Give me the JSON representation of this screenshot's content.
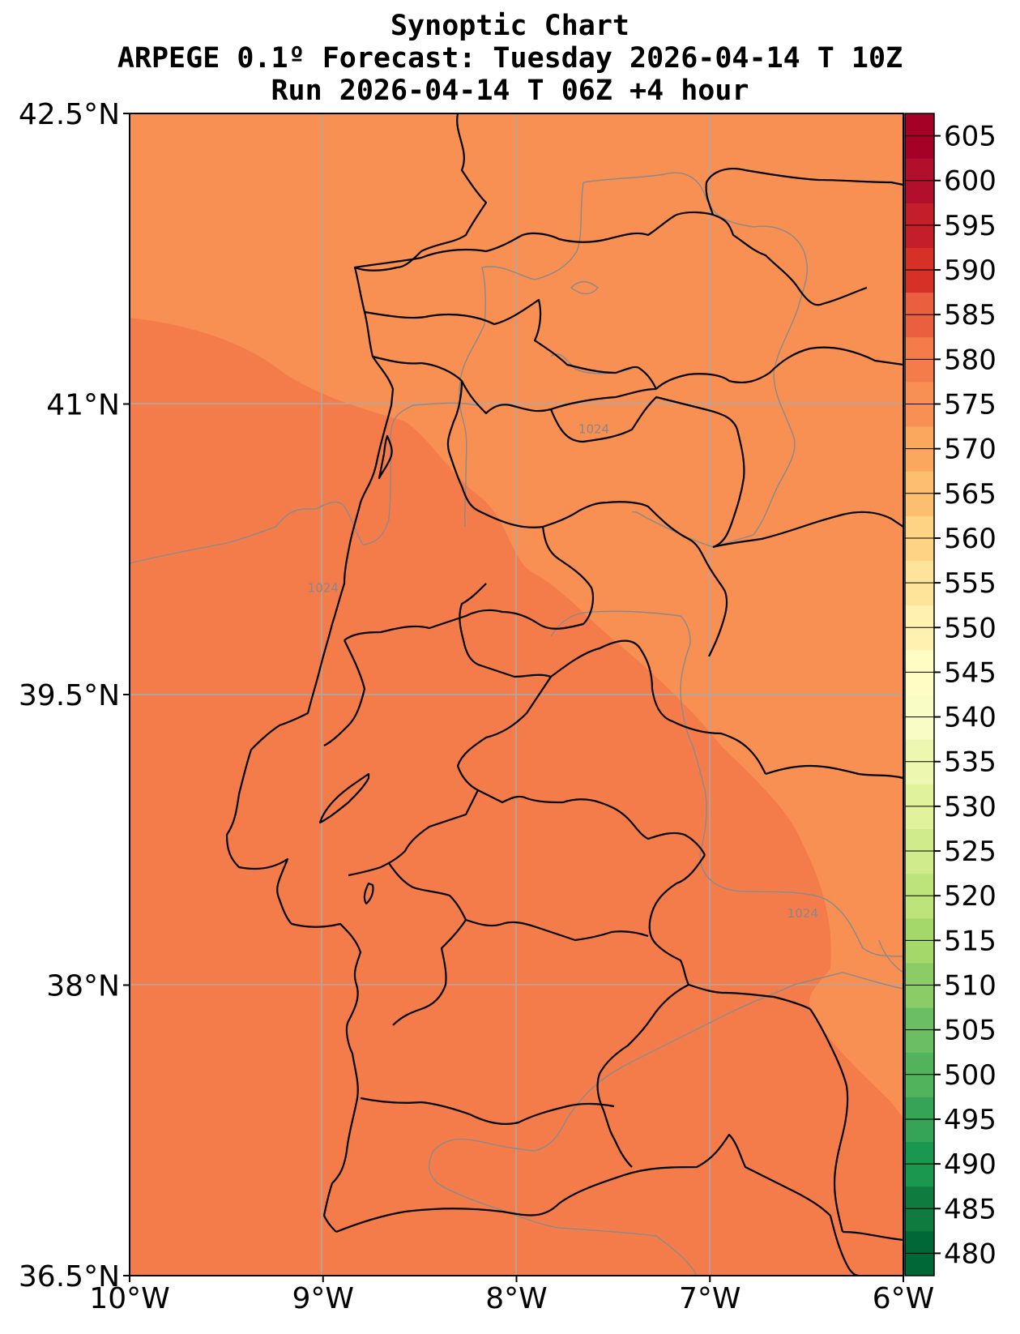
{
  "titles": {
    "line1": "Synoptic Chart",
    "line2": "ARPEGE 0.1º Forecast: Tuesday 2026-04-14 T 10Z",
    "line3": "Run 2026-04-14 T 06Z +4 hour"
  },
  "map": {
    "lon_range": [
      -10,
      -6
    ],
    "lat_range": [
      36.5,
      42.5
    ],
    "lat_ticks": [
      {
        "value": 42.5,
        "label": "42.5°N"
      },
      {
        "value": 41.0,
        "label": "41°N"
      },
      {
        "value": 39.5,
        "label": "39.5°N"
      },
      {
        "value": 38.0,
        "label": "38°N"
      },
      {
        "value": 36.5,
        "label": "36.5°N"
      }
    ],
    "lon_ticks": [
      {
        "value": -10,
        "label": "10°W"
      },
      {
        "value": -9,
        "label": "9°W"
      },
      {
        "value": -8,
        "label": "8°W"
      },
      {
        "value": -7,
        "label": "7°W"
      },
      {
        "value": -6,
        "label": "6°W"
      }
    ],
    "gridlines": true,
    "field_colors": {
      "band_575_580": "#f47c4b",
      "band_570_575": "#f88f53"
    },
    "isobar_labels": [
      {
        "text": "1024",
        "lon": -9.0,
        "lat": 40.03
      },
      {
        "text": "1024",
        "lon": -7.6,
        "lat": 40.85
      },
      {
        "text": "1024",
        "lon": -6.52,
        "lat": 38.35
      }
    ]
  },
  "colorbar": {
    "levels": [
      480,
      485,
      490,
      495,
      500,
      505,
      510,
      515,
      520,
      525,
      530,
      535,
      540,
      545,
      550,
      555,
      560,
      565,
      570,
      575,
      580,
      585,
      590,
      595,
      600,
      605
    ],
    "labels": [
      "480",
      "485",
      "490",
      "495",
      "500",
      "505",
      "510",
      "515",
      "520",
      "525",
      "530",
      "535",
      "540",
      "545",
      "550",
      "555",
      "560",
      "565",
      "570",
      "575",
      "580",
      "585",
      "590",
      "595",
      "600",
      "605"
    ],
    "colors": [
      "#006837",
      "#0f7c3f",
      "#1a9850",
      "#36a456",
      "#52b35d",
      "#6cbe63",
      "#8ccc66",
      "#a5d86a",
      "#bde47b",
      "#d0eb8c",
      "#e0f29a",
      "#eef7b0",
      "#f9fcc5",
      "#fffcc4",
      "#fff2b0",
      "#fee49a",
      "#fed384",
      "#fdbf6f",
      "#fca75e",
      "#f88f53",
      "#f47c4b",
      "#ea5f3e",
      "#d73027",
      "#c41e2a",
      "#b10f2c",
      "#a50026"
    ]
  }
}
